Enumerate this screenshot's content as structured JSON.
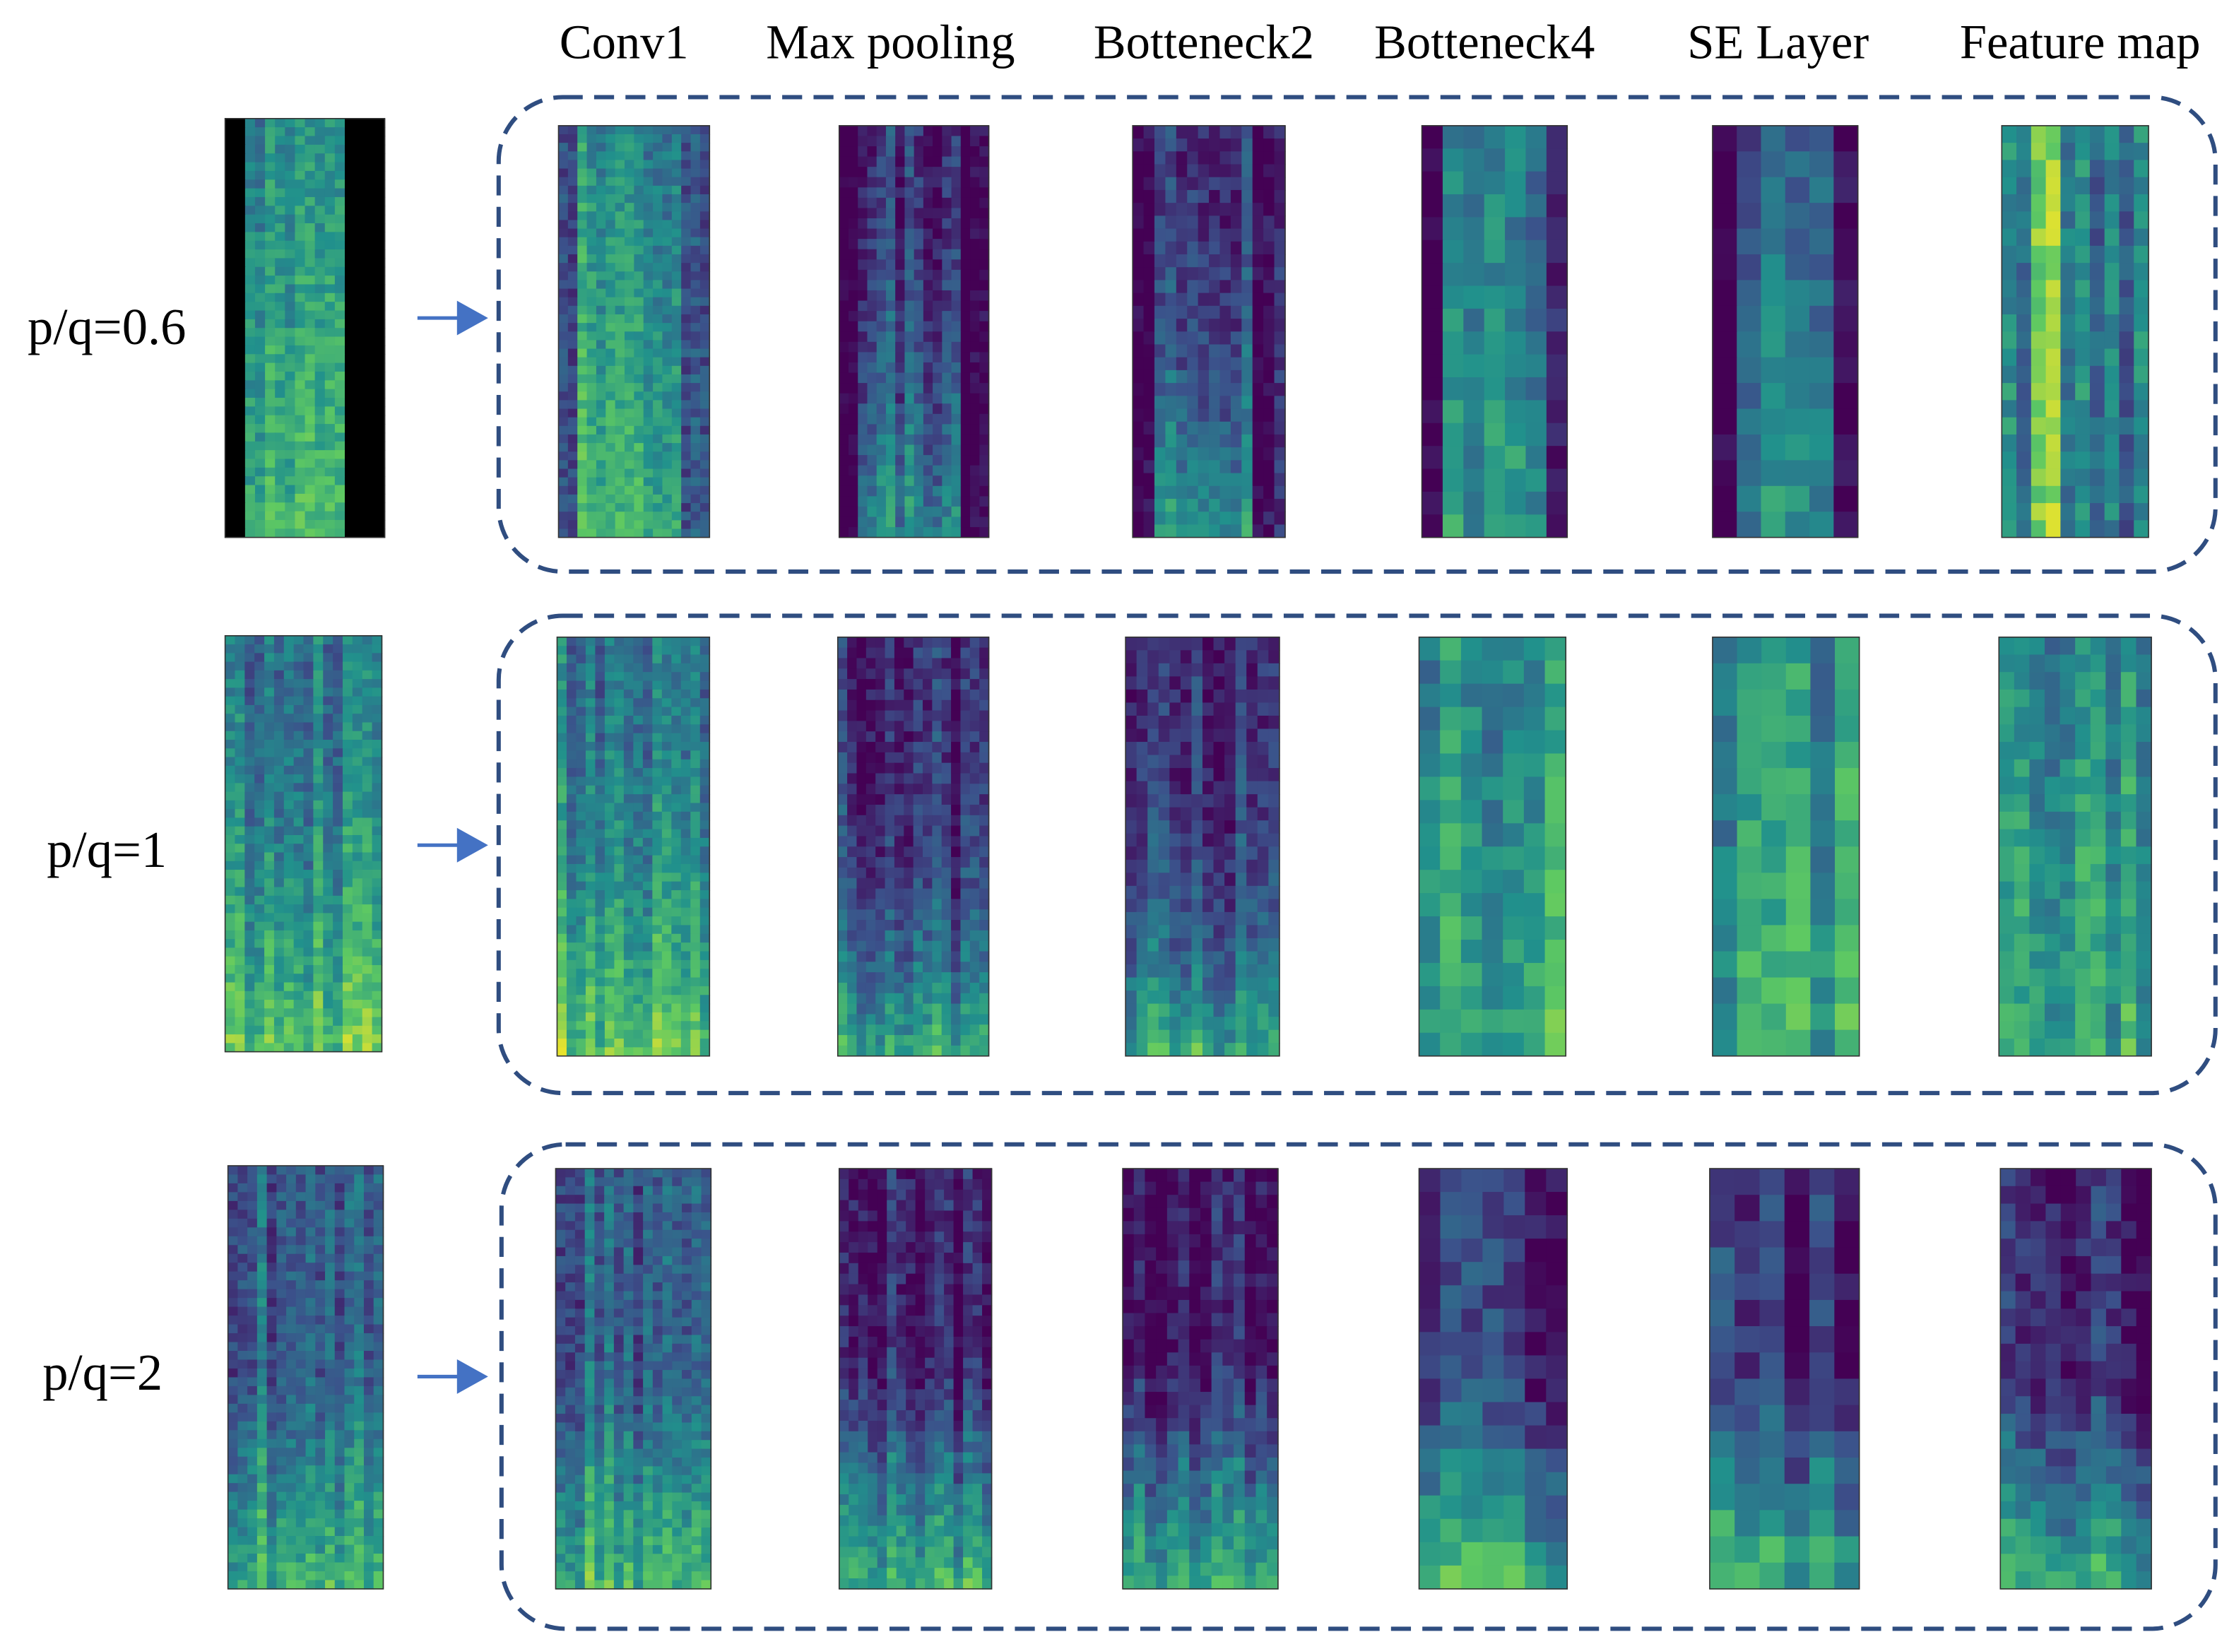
{
  "columns": [
    "Conv1",
    "Max pooling",
    "Botteneck2",
    "Botteneck4",
    "SE Layer",
    "Feature map"
  ],
  "rows": [
    {
      "label": "p/q=0.6"
    },
    {
      "label": "p/q=1"
    },
    {
      "label": "p/q=2"
    }
  ]
}
